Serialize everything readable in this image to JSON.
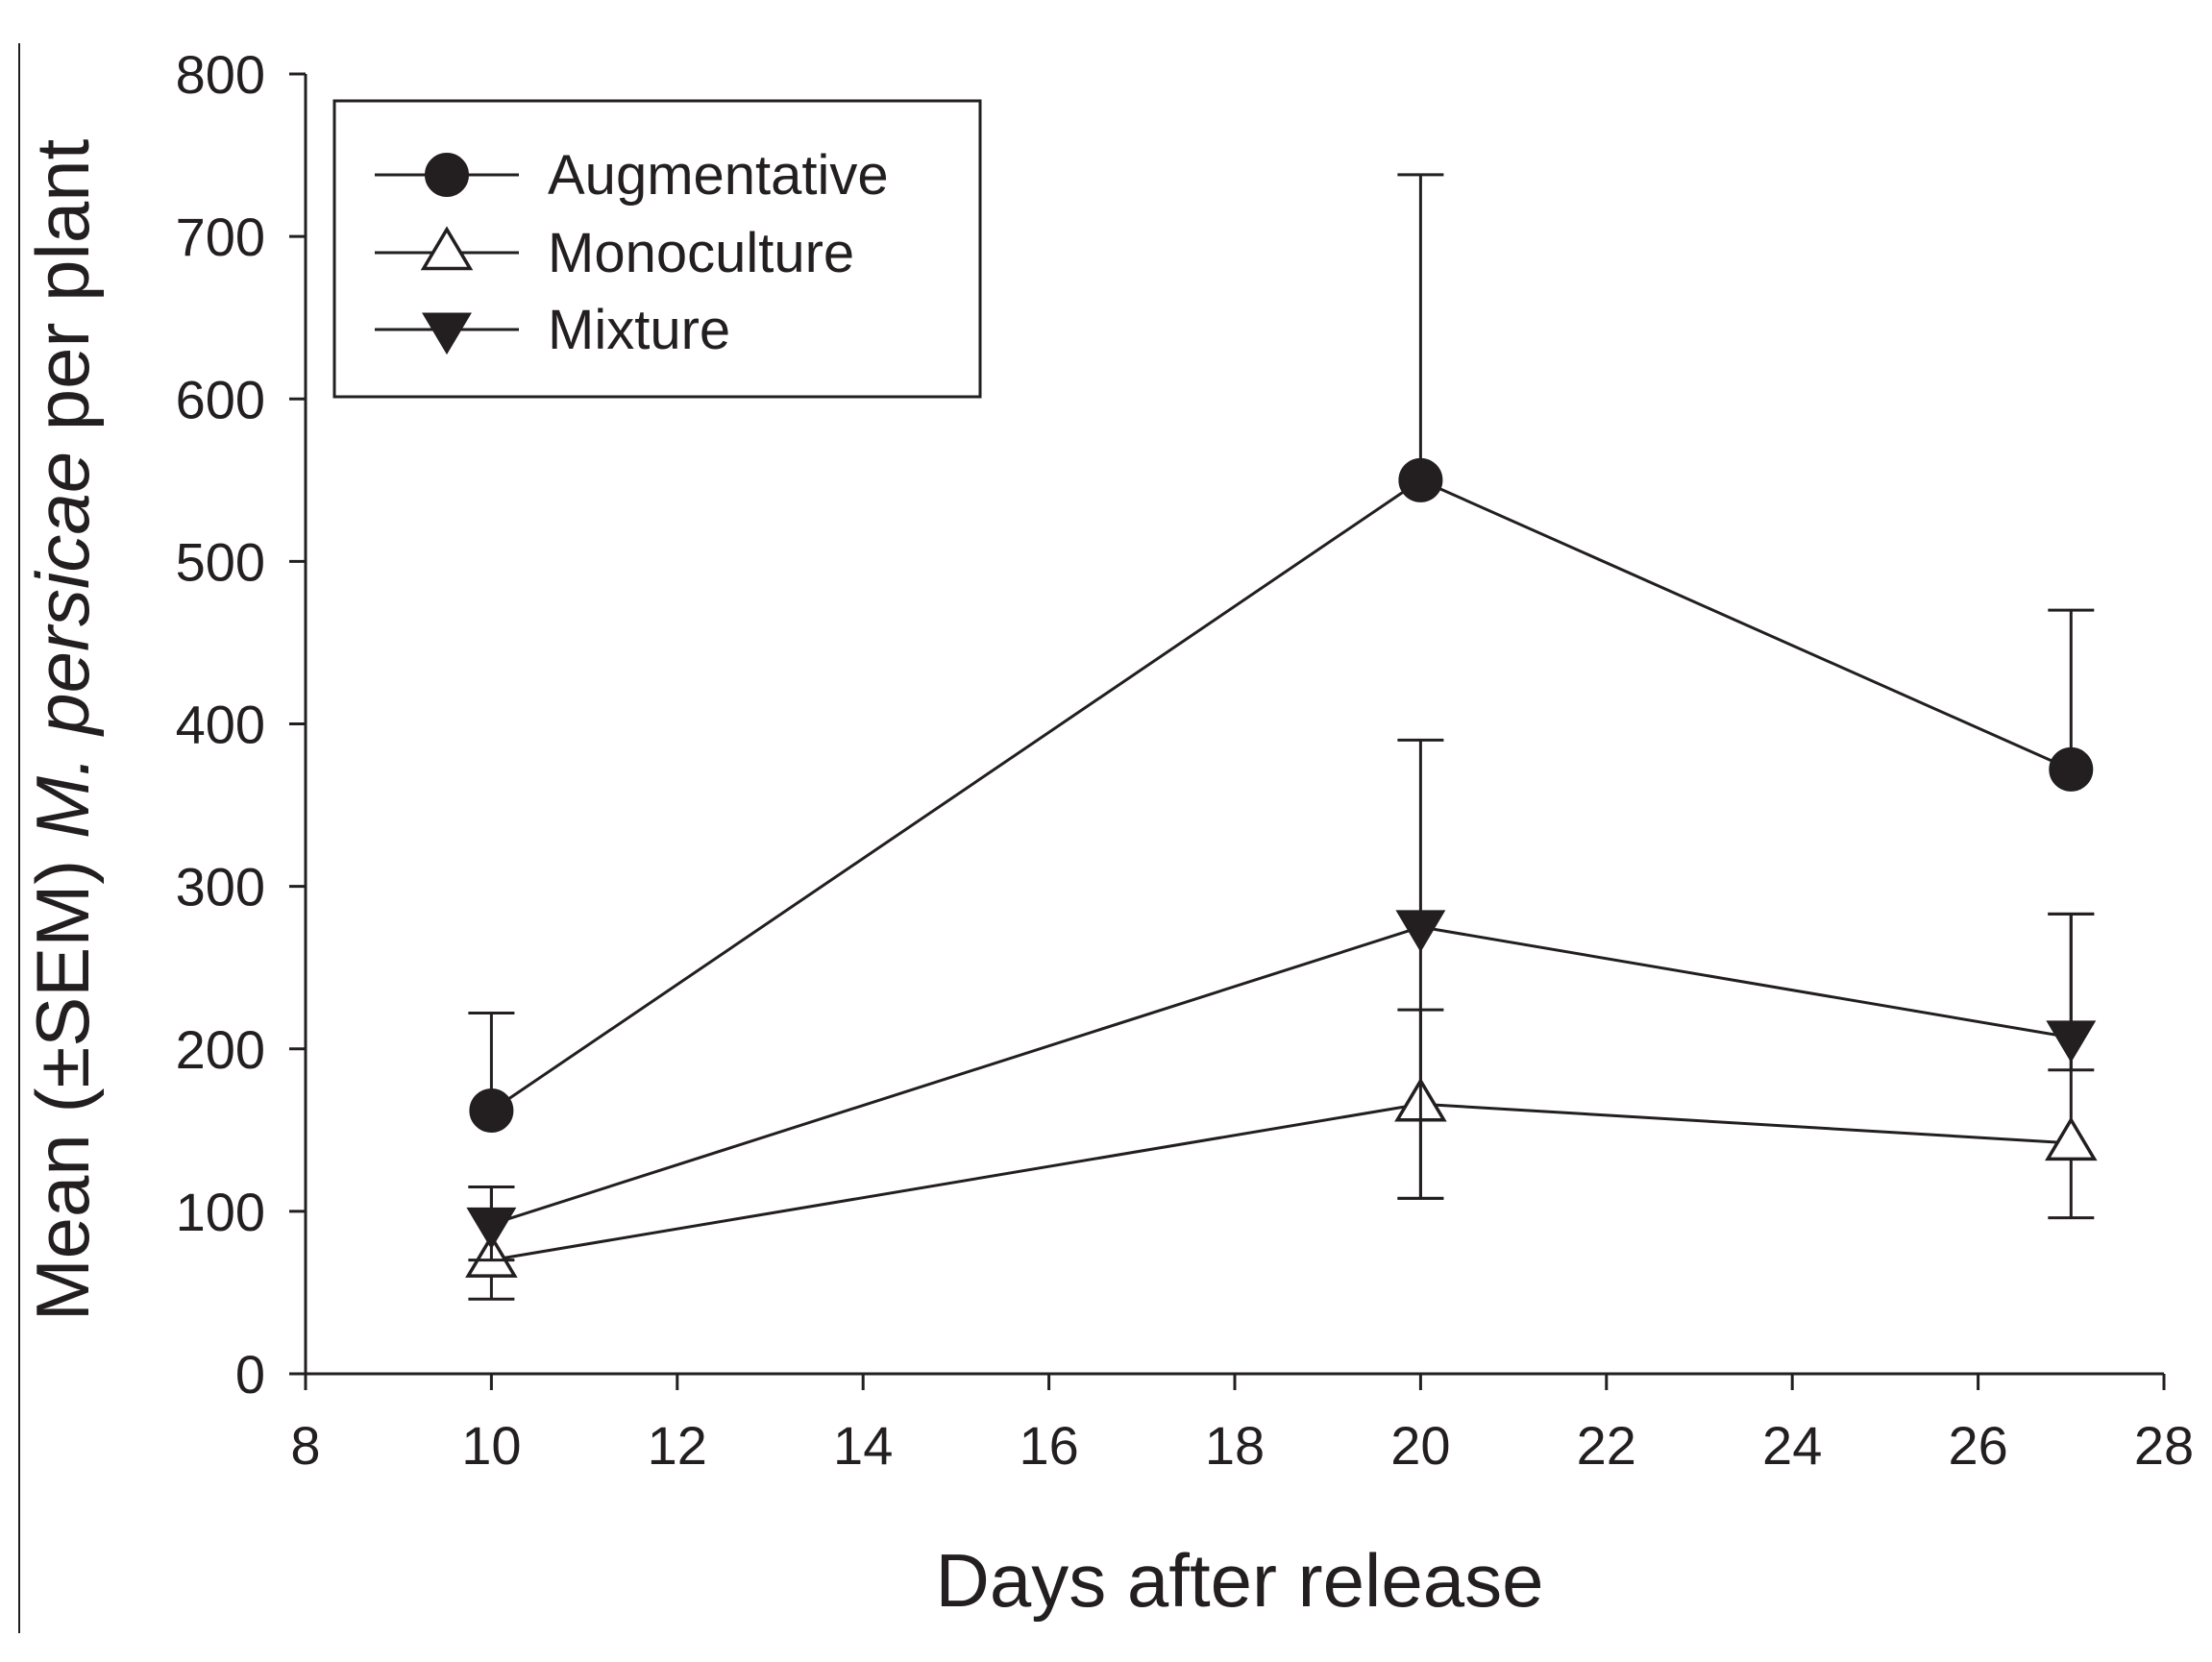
{
  "chart_data": {
    "type": "line",
    "title": "",
    "xlabel": "Days after release",
    "ylabel_parts": [
      "Mean (±SEM) ",
      "M. persicae",
      " per plant"
    ],
    "xlim": [
      8,
      28
    ],
    "ylim": [
      0,
      800
    ],
    "x_ticks": [
      8,
      10,
      12,
      14,
      16,
      18,
      20,
      22,
      24,
      26,
      28
    ],
    "y_ticks": [
      0,
      100,
      200,
      300,
      400,
      500,
      600,
      700,
      800
    ],
    "x": [
      10,
      20,
      27
    ],
    "legend_position": "top-left",
    "series": [
      {
        "name": "Augmentative",
        "marker": "filled-circle",
        "values": [
          162,
          550,
          372
        ],
        "err_low": [
          162,
          550,
          372
        ],
        "err_high": [
          222,
          738,
          470
        ]
      },
      {
        "name": "Monoculture",
        "marker": "open-triangle-up",
        "values": [
          70,
          166,
          142
        ],
        "err_low": [
          46,
          108,
          96
        ],
        "err_high": [
          115,
          224,
          283
        ]
      },
      {
        "name": "Mixture",
        "marker": "filled-triangle-down",
        "values": [
          92,
          275,
          207
        ],
        "err_low": [
          70,
          108,
          187
        ],
        "err_high": [
          115,
          390,
          283
        ]
      }
    ],
    "colors": {
      "ink": "#231f20",
      "background": "#ffffff"
    }
  }
}
